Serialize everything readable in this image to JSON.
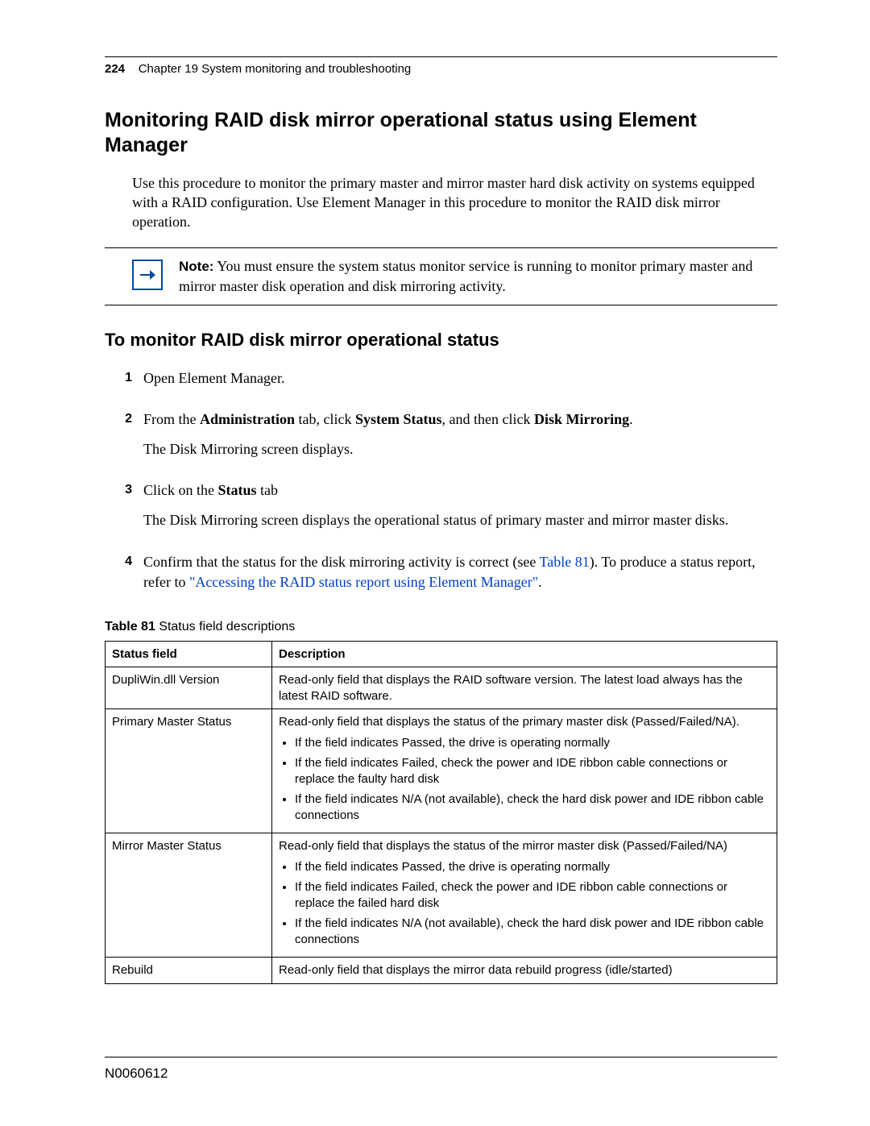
{
  "header": {
    "page_number": "224",
    "chapter": "Chapter 19  System monitoring and troubleshooting"
  },
  "section_title": "Monitoring RAID disk mirror operational status using Element Manager",
  "intro_paragraph": "Use this procedure to monitor the primary master and mirror master hard disk activity on systems equipped with a RAID configuration. Use Element Manager in this procedure to monitor the RAID disk mirror operation.",
  "note": {
    "label": "Note:",
    "text": " You must ensure the system status monitor service is running to monitor primary master and mirror master disk operation and disk mirroring activity.",
    "icon_color": "#0048a5"
  },
  "subsection_title": "To monitor RAID disk mirror operational status",
  "steps": [
    {
      "num": "1",
      "lines": [
        {
          "parts": [
            {
              "t": "Open Element Manager."
            }
          ]
        }
      ]
    },
    {
      "num": "2",
      "lines": [
        {
          "parts": [
            {
              "t": "From the "
            },
            {
              "t": "Administration",
              "bold": true
            },
            {
              "t": " tab, click "
            },
            {
              "t": "System Status",
              "bold": true
            },
            {
              "t": ", and then click "
            },
            {
              "t": "Disk Mirroring",
              "bold": true
            },
            {
              "t": "."
            }
          ]
        },
        {
          "parts": [
            {
              "t": "The Disk Mirroring screen displays."
            }
          ]
        }
      ]
    },
    {
      "num": "3",
      "lines": [
        {
          "parts": [
            {
              "t": "Click on the "
            },
            {
              "t": "Status",
              "bold": true
            },
            {
              "t": " tab"
            }
          ]
        },
        {
          "parts": [
            {
              "t": "The Disk Mirroring screen displays the operational status of primary master and mirror master disks."
            }
          ]
        }
      ]
    },
    {
      "num": "4",
      "lines": [
        {
          "parts": [
            {
              "t": "Confirm that the status for the disk mirroring activity is correct (see "
            },
            {
              "t": "Table 81",
              "link": true
            },
            {
              "t": "). To produce a status report, refer to "
            },
            {
              "t": "\"Accessing the RAID status report using Element Manager\"",
              "link": true
            },
            {
              "t": "."
            }
          ]
        }
      ]
    }
  ],
  "table": {
    "caption_label": "Table 81",
    "caption_text": "   Status field descriptions",
    "header_field": "Status field",
    "header_desc": "Description",
    "rows": [
      {
        "field": "DupliWin.dll Version",
        "desc_intro": "Read-only field that displays the RAID software version. The latest load always has the latest RAID software.",
        "bullets": []
      },
      {
        "field": "Primary Master Status",
        "desc_intro": "Read-only field that displays the status of the primary master disk (Passed/Failed/NA).",
        "bullets": [
          "If the field indicates Passed, the drive is operating normally",
          "If the field indicates Failed, check the power and IDE ribbon cable connections or replace the faulty hard disk",
          "If the field indicates N/A (not available), check the hard disk power and IDE ribbon cable connections"
        ]
      },
      {
        "field": "Mirror Master Status",
        "desc_intro": "Read-only field that displays the status of the mirror master disk (Passed/Failed/NA)",
        "bullets": [
          "If the field indicates Passed, the drive is operating normally",
          "If the field indicates Failed, check the power and IDE ribbon cable connections or replace the failed hard disk",
          "If the field indicates N/A (not available), check the hard disk power and IDE ribbon cable connections"
        ]
      },
      {
        "field": "Rebuild",
        "desc_intro": "Read-only field that displays the mirror data rebuild progress (idle/started)",
        "bullets": []
      }
    ]
  },
  "footer": "N0060612"
}
